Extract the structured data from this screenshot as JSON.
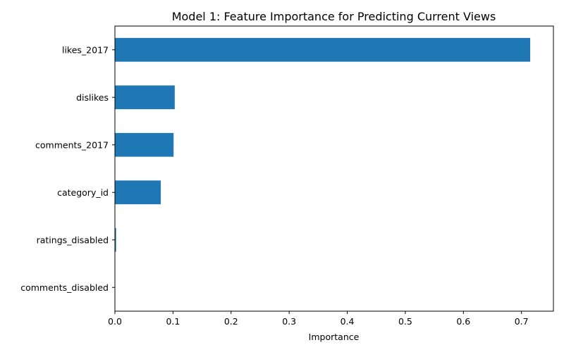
{
  "chart_data": {
    "type": "bar",
    "orientation": "horizontal",
    "title": "Model 1: Feature Importance for Predicting Current Views",
    "xlabel": "Importance",
    "ylabel": "",
    "categories": [
      "likes_2017",
      "dislikes",
      "comments_2017",
      "category_id",
      "ratings_disabled",
      "comments_disabled"
    ],
    "values": [
      0.715,
      0.103,
      0.101,
      0.079,
      0.002,
      0.0
    ],
    "xlim": [
      0,
      0.755
    ],
    "xticks": [
      0,
      0.1,
      0.2,
      0.3,
      0.4,
      0.5,
      0.6,
      0.7
    ],
    "xtick_labels": [
      "0.0",
      "0.1",
      "0.2",
      "0.3",
      "0.4",
      "0.5",
      "0.6",
      "0.7"
    ],
    "grid": false,
    "bar_color": "#1f77b4"
  }
}
